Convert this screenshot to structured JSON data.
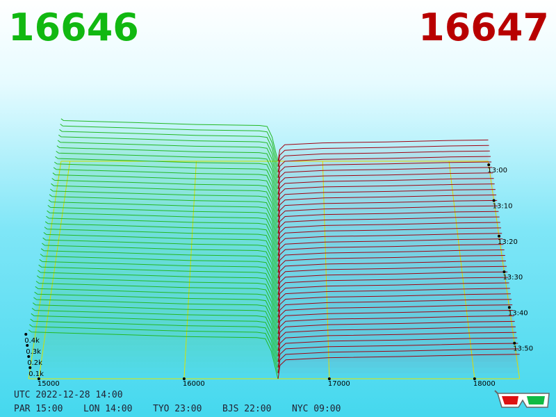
{
  "bid_price": "16646",
  "ask_price": "16647",
  "utc": "UTC 2022-12-28 14:00",
  "clocks": [
    "PAR 15:00",
    "LON 14:00",
    "TYO 23:00",
    "BJS 22:00",
    "NYC 09:00"
  ],
  "chart_data": {
    "type": "depth3d",
    "xlim": [
      14930,
      18310
    ],
    "xticks": [
      15000,
      16000,
      17000,
      18000
    ],
    "ylim": [
      0,
      500
    ],
    "yticks": [
      {
        "value": 100,
        "label": "0.1k"
      },
      {
        "value": 200,
        "label": "0.2k"
      },
      {
        "value": 300,
        "label": "0.3k"
      },
      {
        "value": 400,
        "label": "0.4k"
      }
    ],
    "zlim": [
      779,
      840
    ],
    "zticks": [
      {
        "value": 780,
        "label": "13:00"
      },
      {
        "value": 790,
        "label": "13:10"
      },
      {
        "value": 800,
        "label": "13:20"
      },
      {
        "value": 810,
        "label": "13:30"
      },
      {
        "value": 820,
        "label": "13:40"
      },
      {
        "value": 830,
        "label": "13:50"
      }
    ],
    "grid": true,
    "grid_color": "#e8e800",
    "series": [
      {
        "color": "#22b822",
        "x": [
          14930,
          14950,
          15500,
          16000,
          16500,
          16560,
          16600,
          16646
        ],
        "values": [
          440,
          420,
          400,
          380,
          370,
          360,
          250,
          0
        ]
      },
      {
        "color": "#a00010",
        "x": [
          16647,
          16660,
          16700,
          17000,
          17500,
          18000,
          18310
        ],
        "values": [
          0,
          120,
          170,
          190,
          200,
          215,
          220
        ]
      }
    ]
  }
}
